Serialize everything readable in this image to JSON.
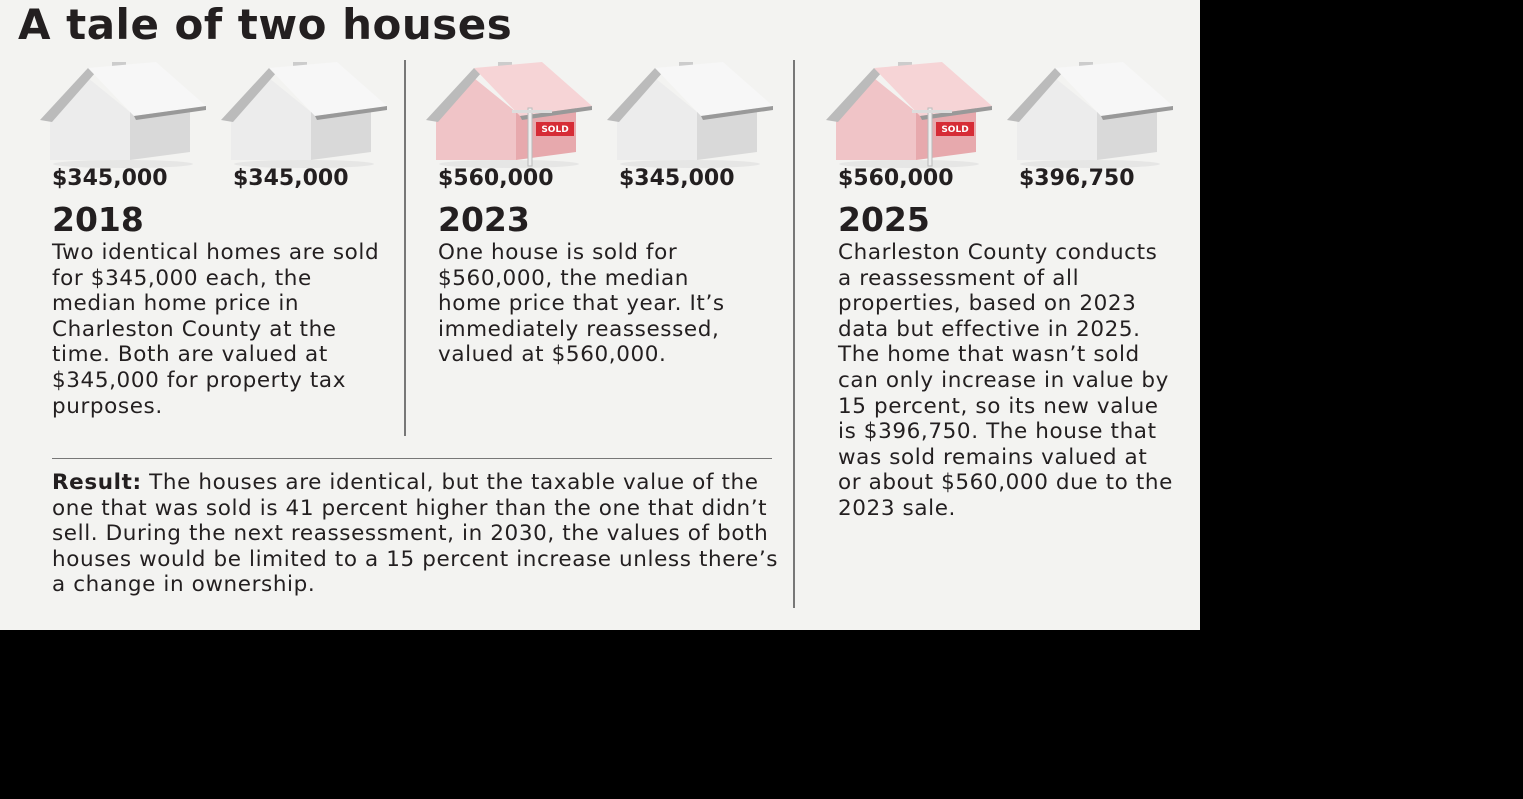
{
  "title": "A tale of two houses",
  "panels": [
    {
      "year": "2018",
      "houses": [
        {
          "price": "$345,000"
        },
        {
          "price": "$345,000"
        }
      ],
      "text": "Two identical homes are sold for $345,000 each, the median home price in Charleston County at the time. Both are valued at $345,000 for property tax purposes."
    },
    {
      "year": "2023",
      "houses": [
        {
          "price": "$560,000",
          "sign": "SOLD"
        },
        {
          "price": "$345,000"
        }
      ],
      "text": "One house is sold for $560,000, the median home price that year. It’s immediately reassessed, valued at $560,000."
    },
    {
      "year": "2025",
      "houses": [
        {
          "price": "$560,000",
          "sign": "SOLD"
        },
        {
          "price": "$396,750"
        }
      ],
      "text": "Charleston County conducts a reassessment of all properties, based on 2023 data but effective in 2025. The home that wasn’t sold can only increase in value by 15 percent, so its new value is $396,750. The house that was sold remains valued at or about $560,000 due to the 2023 sale."
    }
  ],
  "result": {
    "label": "Result:",
    "text": "The houses are identical, but the taxable value of the one that was sold is 41 percent higher than the one that didn’t sell. During the next reassessment, in 2030, the values of both houses would be limited to a 15 percent increase unless there’s a change in ownership."
  }
}
